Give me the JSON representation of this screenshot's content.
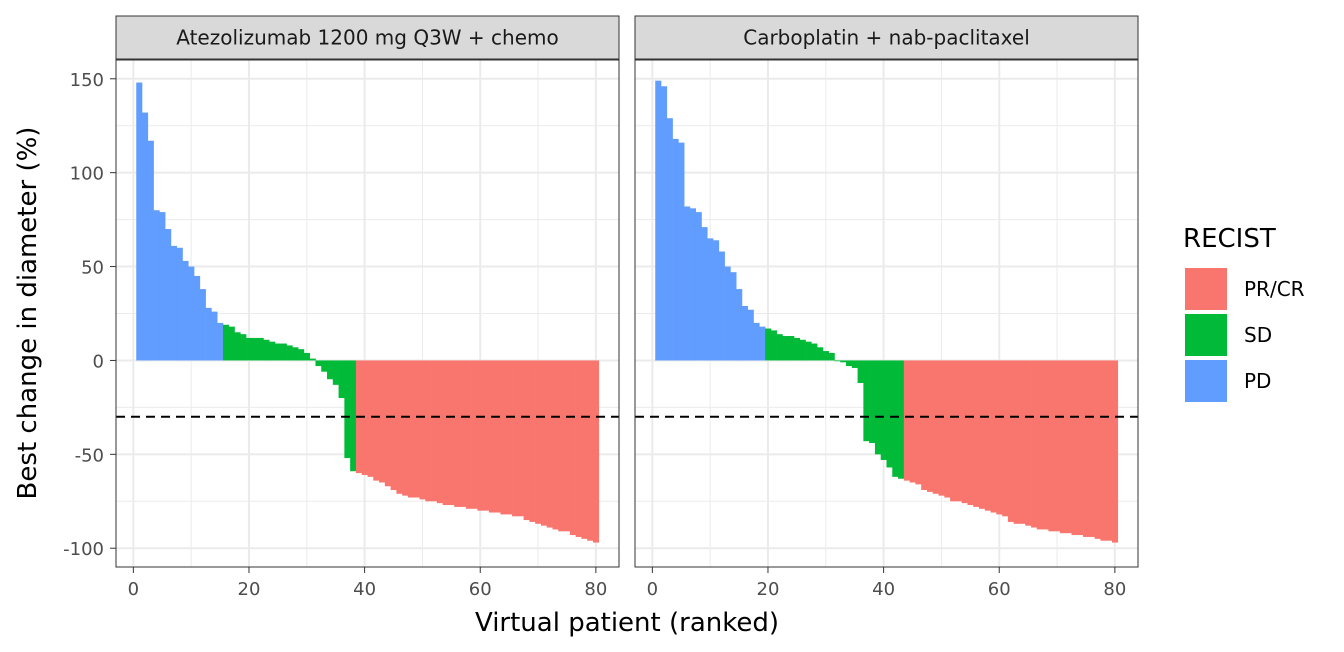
{
  "chart_data": {
    "type": "bar",
    "subtype": "waterfall",
    "xlabel": "Virtual patient (ranked)",
    "ylabel": "Best change in diameter (%)",
    "xlim": [
      -3,
      84
    ],
    "ylim": [
      -110,
      160
    ],
    "x_ticks": [
      0,
      20,
      40,
      60,
      80
    ],
    "y_ticks": [
      -100,
      -50,
      0,
      50,
      100,
      150
    ],
    "y_tick_labels": [
      "-100",
      "-50",
      "0",
      "50",
      "100",
      "150"
    ],
    "reference_line": {
      "y": -30,
      "style": "dashed"
    },
    "grid": true,
    "legend": {
      "title": "RECIST",
      "placement": "right",
      "entries": [
        {
          "label": "PR/CR",
          "color": "#F8766D"
        },
        {
          "label": "SD",
          "color": "#00BA38"
        },
        {
          "label": "PD",
          "color": "#619CFF"
        }
      ]
    },
    "panels": [
      {
        "title": "Atezolizumab 1200 mg Q3W + chemo",
        "x": [
          1,
          2,
          3,
          4,
          5,
          6,
          7,
          8,
          9,
          10,
          11,
          12,
          13,
          14,
          15,
          16,
          17,
          18,
          19,
          20,
          21,
          22,
          23,
          24,
          25,
          26,
          27,
          28,
          29,
          30,
          31,
          32,
          33,
          34,
          35,
          36,
          37,
          38,
          39,
          40,
          41,
          42,
          43,
          44,
          45,
          46,
          47,
          48,
          49,
          50,
          51,
          52,
          53,
          54,
          55,
          56,
          57,
          58,
          59,
          60,
          61,
          62,
          63,
          64,
          65,
          66,
          67,
          68,
          69,
          70,
          71,
          72,
          73,
          74,
          75,
          76,
          77,
          78,
          79,
          80
        ],
        "values": [
          148,
          132,
          117,
          80,
          79,
          70,
          61,
          60,
          53,
          50,
          45,
          38,
          28,
          26,
          20,
          19,
          18,
          15,
          14,
          12,
          12,
          12,
          11,
          10,
          9,
          9,
          8,
          7,
          6,
          4,
          1,
          -3,
          -6,
          -10,
          -13,
          -20,
          -52,
          -59,
          -60,
          -61,
          -62,
          -64,
          -65,
          -67,
          -69,
          -71,
          -72,
          -73,
          -73,
          -74,
          -75,
          -75,
          -76,
          -77,
          -77,
          -78,
          -78,
          -79,
          -79,
          -80,
          -80,
          -81,
          -81,
          -82,
          -82,
          -83,
          -83,
          -85,
          -86,
          -87,
          -88,
          -89,
          -90,
          -91,
          -91,
          -93,
          -94,
          -95,
          -96,
          -97
        ],
        "categories": [
          "PD",
          "PD",
          "PD",
          "PD",
          "PD",
          "PD",
          "PD",
          "PD",
          "PD",
          "PD",
          "PD",
          "PD",
          "PD",
          "PD",
          "PD",
          "SD",
          "SD",
          "SD",
          "SD",
          "SD",
          "SD",
          "SD",
          "SD",
          "SD",
          "SD",
          "SD",
          "SD",
          "SD",
          "SD",
          "SD",
          "SD",
          "SD",
          "SD",
          "SD",
          "SD",
          "SD",
          "SD",
          "SD",
          "PR/CR",
          "PR/CR",
          "PR/CR",
          "PR/CR",
          "PR/CR",
          "PR/CR",
          "PR/CR",
          "PR/CR",
          "PR/CR",
          "PR/CR",
          "PR/CR",
          "PR/CR",
          "PR/CR",
          "PR/CR",
          "PR/CR",
          "PR/CR",
          "PR/CR",
          "PR/CR",
          "PR/CR",
          "PR/CR",
          "PR/CR",
          "PR/CR",
          "PR/CR",
          "PR/CR",
          "PR/CR",
          "PR/CR",
          "PR/CR",
          "PR/CR",
          "PR/CR",
          "PR/CR",
          "PR/CR",
          "PR/CR",
          "PR/CR",
          "PR/CR",
          "PR/CR",
          "PR/CR",
          "PR/CR",
          "PR/CR",
          "PR/CR",
          "PR/CR",
          "PR/CR",
          "PR/CR"
        ]
      },
      {
        "title": "Carboplatin + nab-paclitaxel",
        "x": [
          1,
          2,
          3,
          4,
          5,
          6,
          7,
          8,
          9,
          10,
          11,
          12,
          13,
          14,
          15,
          16,
          17,
          18,
          19,
          20,
          21,
          22,
          23,
          24,
          25,
          26,
          27,
          28,
          29,
          30,
          31,
          32,
          33,
          34,
          35,
          36,
          37,
          38,
          39,
          40,
          41,
          42,
          43,
          44,
          45,
          46,
          47,
          48,
          49,
          50,
          51,
          52,
          53,
          54,
          55,
          56,
          57,
          58,
          59,
          60,
          61,
          62,
          63,
          64,
          65,
          66,
          67,
          68,
          69,
          70,
          71,
          72,
          73,
          74,
          75,
          76,
          77,
          78,
          79,
          80
        ],
        "values": [
          149,
          146,
          129,
          118,
          116,
          82,
          81,
          79,
          71,
          65,
          64,
          58,
          50,
          47,
          38,
          29,
          27,
          20,
          18,
          17,
          16,
          14,
          13,
          13,
          12,
          11,
          10,
          9,
          7,
          5,
          4,
          0,
          -1,
          -3,
          -4,
          -12,
          -43,
          -44,
          -50,
          -53,
          -57,
          -62,
          -63,
          -64,
          -65,
          -66,
          -69,
          -70,
          -71,
          -72,
          -73,
          -75,
          -75,
          -76,
          -77,
          -78,
          -79,
          -80,
          -81,
          -82,
          -83,
          -86,
          -87,
          -87,
          -88,
          -89,
          -90,
          -90,
          -91,
          -91,
          -92,
          -92,
          -93,
          -93,
          -94,
          -94,
          -95,
          -96,
          -96,
          -97
        ],
        "categories": [
          "PD",
          "PD",
          "PD",
          "PD",
          "PD",
          "PD",
          "PD",
          "PD",
          "PD",
          "PD",
          "PD",
          "PD",
          "PD",
          "PD",
          "PD",
          "PD",
          "PD",
          "PD",
          "PD",
          "SD",
          "SD",
          "SD",
          "SD",
          "SD",
          "SD",
          "SD",
          "SD",
          "SD",
          "SD",
          "SD",
          "SD",
          "SD",
          "SD",
          "SD",
          "SD",
          "SD",
          "SD",
          "SD",
          "SD",
          "SD",
          "SD",
          "SD",
          "SD",
          "PR/CR",
          "PR/CR",
          "PR/CR",
          "PR/CR",
          "PR/CR",
          "PR/CR",
          "PR/CR",
          "PR/CR",
          "PR/CR",
          "PR/CR",
          "PR/CR",
          "PR/CR",
          "PR/CR",
          "PR/CR",
          "PR/CR",
          "PR/CR",
          "PR/CR",
          "PR/CR",
          "PR/CR",
          "PR/CR",
          "PR/CR",
          "PR/CR",
          "PR/CR",
          "PR/CR",
          "PR/CR",
          "PR/CR",
          "PR/CR",
          "PR/CR",
          "PR/CR",
          "PR/CR",
          "PR/CR",
          "PR/CR",
          "PR/CR",
          "PR/CR",
          "PR/CR",
          "PR/CR",
          "PR/CR"
        ]
      }
    ]
  }
}
